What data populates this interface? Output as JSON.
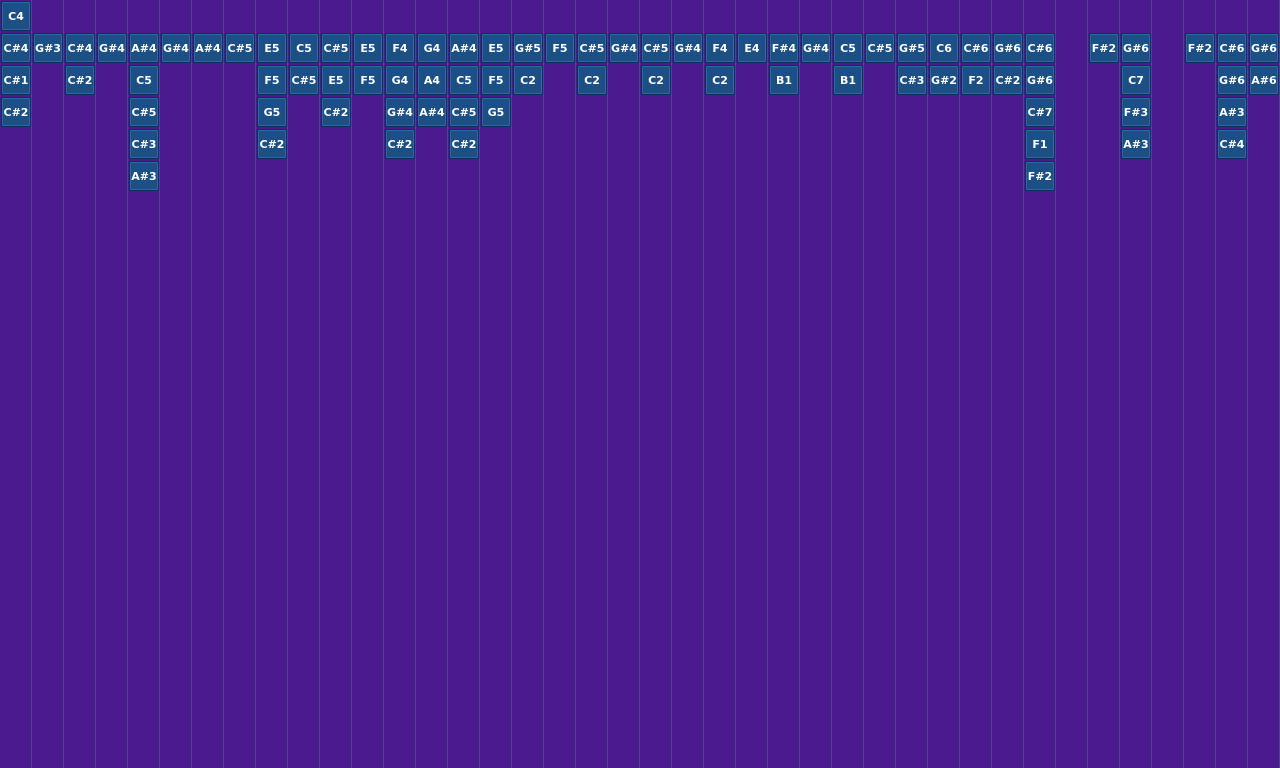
{
  "header_note": "C4",
  "columns": [
    [
      "C#4",
      "C#1",
      "C#2"
    ],
    [
      "G#3"
    ],
    [
      "C#4",
      "C#2"
    ],
    [
      "G#4"
    ],
    [
      "A#4",
      "C5",
      "C#5",
      "C#3",
      "A#3"
    ],
    [
      "G#4"
    ],
    [
      "A#4"
    ],
    [
      "C#5"
    ],
    [
      "E5",
      "F5",
      "G5",
      "C#2"
    ],
    [
      "C5",
      "C#5"
    ],
    [
      "C#5",
      "E5",
      "C#2"
    ],
    [
      "E5",
      "F5"
    ],
    [
      "F4",
      "G4",
      "G#4",
      "C#2"
    ],
    [
      "G4",
      "A4",
      "A#4"
    ],
    [
      "A#4",
      "C5",
      "C#5",
      "C#2"
    ],
    [
      "E5",
      "F5",
      "G5"
    ],
    [
      "G#5",
      "C2"
    ],
    [
      "F5"
    ],
    [
      "C#5",
      "C2"
    ],
    [
      "G#4"
    ],
    [
      "C#5",
      "C2"
    ],
    [
      "G#4"
    ],
    [
      "F4",
      "C2"
    ],
    [
      "E4"
    ],
    [
      "F#4",
      "B1"
    ],
    [
      "G#4"
    ],
    [
      "C5",
      "B1"
    ],
    [
      "C#5"
    ],
    [
      "G#5",
      "C#3"
    ],
    [
      "C6",
      "G#2"
    ],
    [
      "C#6",
      "F2"
    ],
    [
      "G#6",
      "C#2"
    ],
    [
      "C#6",
      "G#6",
      "C#7",
      "F1",
      "F#2"
    ],
    [],
    [
      "F#2"
    ],
    [
      "G#6",
      "C7",
      "F#3",
      "A#3"
    ],
    [],
    [
      "F#2"
    ],
    [
      "C#6",
      "G#6",
      "A#3",
      "C#4"
    ],
    [
      "G#6",
      "A#6"
    ]
  ]
}
